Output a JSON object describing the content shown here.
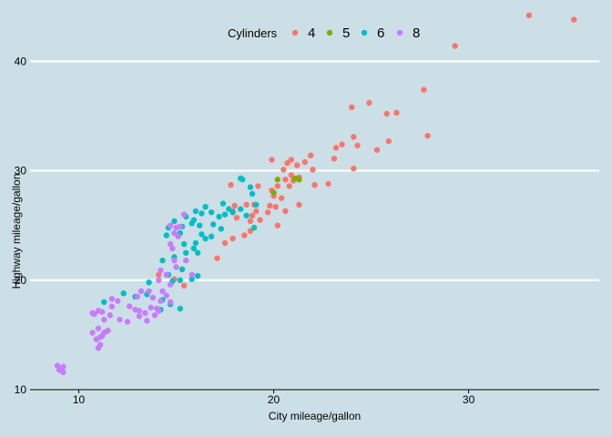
{
  "chart_data": {
    "type": "scatter",
    "xlabel": "City mileage/gallon",
    "ylabel": "Highway mileage/gallon",
    "xlim": [
      7.5,
      36.7
    ],
    "ylim": [
      10,
      45.6
    ],
    "xticks": [
      10,
      20,
      30
    ],
    "yticks": [
      10,
      20,
      30,
      40
    ],
    "grid": "horizontal, white",
    "legend": {
      "title": "Cylinders",
      "position": "top"
    },
    "series": [
      {
        "name": "4",
        "color": "#f8766d",
        "points": [
          [
            33.1,
            44.2
          ],
          [
            35.4,
            43.8
          ],
          [
            29.3,
            41.4
          ],
          [
            27.7,
            37.4
          ],
          [
            24.9,
            36.2
          ],
          [
            24.0,
            35.8
          ],
          [
            25.8,
            35.2
          ],
          [
            26.3,
            35.3
          ],
          [
            27.9,
            33.2
          ],
          [
            24.1,
            33.1
          ],
          [
            25.9,
            32.7
          ],
          [
            23.5,
            32.4
          ],
          [
            24.3,
            32.3
          ],
          [
            23.2,
            32.1
          ],
          [
            25.3,
            31.9
          ],
          [
            23.1,
            31.1
          ],
          [
            24.1,
            30.2
          ],
          [
            21.9,
            31.4
          ],
          [
            19.9,
            31.0
          ],
          [
            20.9,
            31.0
          ],
          [
            21.6,
            30.8
          ],
          [
            20.7,
            30.7
          ],
          [
            21.2,
            30.5
          ],
          [
            20.5,
            30.1
          ],
          [
            22.0,
            30.1
          ],
          [
            22.8,
            28.8
          ],
          [
            22.1,
            28.7
          ],
          [
            20.9,
            29.6
          ],
          [
            21.3,
            29.4
          ],
          [
            20.6,
            29.2
          ],
          [
            21.0,
            29.1
          ],
          [
            20.2,
            28.6
          ],
          [
            19.9,
            28.2
          ],
          [
            20.8,
            28.6
          ],
          [
            20.0,
            27.7
          ],
          [
            20.4,
            27.5
          ],
          [
            19.2,
            28.6
          ],
          [
            17.8,
            28.7
          ],
          [
            18.3,
            29.3
          ],
          [
            19.8,
            26.8
          ],
          [
            20.1,
            26.7
          ],
          [
            21.3,
            26.9
          ],
          [
            20.6,
            26.3
          ],
          [
            19.7,
            26.2
          ],
          [
            19.1,
            26.3
          ],
          [
            18.9,
            25.9
          ],
          [
            19.3,
            25.5
          ],
          [
            18.8,
            25.4
          ],
          [
            18.1,
            25.7
          ],
          [
            17.9,
            26.3
          ],
          [
            18.6,
            26.9
          ],
          [
            18.0,
            26.8
          ],
          [
            19.0,
            26.9
          ],
          [
            20.2,
            25.0
          ],
          [
            18.8,
            24.5
          ],
          [
            18.5,
            24.1
          ],
          [
            17.9,
            23.8
          ],
          [
            17.5,
            23.4
          ],
          [
            17.1,
            22.0
          ],
          [
            14.9,
            20.1
          ],
          [
            15.4,
            19.5
          ],
          [
            14.1,
            20.5
          ]
        ]
      },
      {
        "name": "5",
        "color": "#7cae00",
        "points": [
          [
            20.2,
            29.2
          ],
          [
            21.1,
            29.3
          ],
          [
            21.3,
            29.2
          ],
          [
            20.0,
            28.0
          ]
        ]
      },
      {
        "name": "6",
        "color": "#00bfc4",
        "points": [
          [
            18.3,
            29.3
          ],
          [
            18.4,
            29.2
          ],
          [
            18.8,
            28.5
          ],
          [
            18.9,
            27.9
          ],
          [
            19.1,
            26.9
          ],
          [
            18.3,
            26.5
          ],
          [
            17.9,
            26.2
          ],
          [
            17.5,
            26.0
          ],
          [
            17.7,
            26.5
          ],
          [
            17.2,
            25.8
          ],
          [
            16.8,
            26.2
          ],
          [
            16.3,
            26.1
          ],
          [
            16.0,
            26.3
          ],
          [
            15.9,
            25.5
          ],
          [
            15.5,
            25.8
          ],
          [
            15.8,
            25.2
          ],
          [
            16.2,
            25.0
          ],
          [
            15.3,
            24.9
          ],
          [
            14.9,
            25.4
          ],
          [
            14.6,
            24.8
          ],
          [
            15.2,
            24.3
          ],
          [
            14.5,
            24.1
          ],
          [
            16.3,
            24.2
          ],
          [
            16.8,
            24.0
          ],
          [
            16.5,
            23.8
          ],
          [
            16.0,
            23.4
          ],
          [
            15.4,
            23.3
          ],
          [
            15.9,
            22.9
          ],
          [
            15.5,
            22.5
          ],
          [
            16.1,
            22.5
          ],
          [
            14.9,
            22.1
          ],
          [
            14.3,
            21.8
          ],
          [
            15.3,
            21.0
          ],
          [
            14.6,
            20.5
          ],
          [
            15.2,
            20.0
          ],
          [
            16.1,
            20.4
          ],
          [
            13.6,
            19.8
          ],
          [
            13.5,
            18.7
          ],
          [
            14.3,
            18.2
          ],
          [
            14.7,
            17.8
          ],
          [
            14.2,
            17.3
          ],
          [
            14.8,
            19.9
          ],
          [
            12.9,
            18.5
          ],
          [
            12.3,
            18.8
          ],
          [
            11.3,
            18.0
          ],
          [
            15.8,
            20.1
          ],
          [
            15.2,
            17.4
          ],
          [
            16.9,
            25.1
          ],
          [
            17.3,
            24.7
          ],
          [
            19.0,
            24.8
          ],
          [
            18.6,
            25.9
          ],
          [
            17.4,
            27.0
          ],
          [
            16.5,
            26.7
          ]
        ]
      },
      {
        "name": "8",
        "color": "#c77cff",
        "points": [
          [
            8.9,
            12.2
          ],
          [
            9.2,
            12.1
          ],
          [
            9.0,
            11.8
          ],
          [
            9.2,
            11.6
          ],
          [
            11.0,
            17.2
          ],
          [
            11.2,
            17.1
          ],
          [
            10.8,
            16.9
          ],
          [
            10.7,
            17.0
          ],
          [
            11.3,
            16.4
          ],
          [
            11.6,
            16.8
          ],
          [
            12.1,
            16.4
          ],
          [
            12.6,
            17.6
          ],
          [
            13.1,
            17.2
          ],
          [
            13.4,
            17.0
          ],
          [
            13.7,
            17.5
          ],
          [
            13.9,
            16.8
          ],
          [
            13.5,
            16.3
          ],
          [
            13.1,
            16.7
          ],
          [
            12.9,
            17.3
          ],
          [
            14.0,
            17.4
          ],
          [
            14.1,
            17.2
          ],
          [
            14.7,
            18.0
          ],
          [
            14.2,
            18.1
          ],
          [
            13.8,
            18.4
          ],
          [
            14.3,
            19.0
          ],
          [
            13.6,
            19.0
          ],
          [
            13.2,
            19.0
          ],
          [
            13.0,
            18.5
          ],
          [
            12.0,
            18.1
          ],
          [
            11.7,
            17.6
          ],
          [
            11.7,
            18.3
          ],
          [
            11.0,
            15.6
          ],
          [
            11.3,
            15.2
          ],
          [
            11.2,
            14.9
          ],
          [
            11.5,
            15.4
          ],
          [
            11.4,
            15.3
          ],
          [
            11.1,
            14.8
          ],
          [
            10.7,
            15.2
          ],
          [
            11.1,
            14.1
          ],
          [
            11.0,
            13.8
          ],
          [
            10.9,
            14.6
          ],
          [
            12.5,
            16.2
          ],
          [
            14.9,
            21.8
          ],
          [
            15.0,
            21.2
          ],
          [
            14.7,
            23.3
          ],
          [
            15.1,
            24.0
          ],
          [
            14.9,
            24.3
          ],
          [
            15.5,
            21.8
          ],
          [
            14.5,
            20.5
          ],
          [
            14.7,
            19.6
          ],
          [
            15.8,
            20.5
          ],
          [
            14.1,
            20.0
          ],
          [
            14.5,
            18.6
          ],
          [
            14.8,
            22.9
          ],
          [
            15.0,
            24.8
          ],
          [
            15.4,
            26.0
          ],
          [
            15.2,
            24.9
          ],
          [
            14.7,
            25.0
          ],
          [
            14.2,
            20.9
          ]
        ]
      }
    ]
  }
}
